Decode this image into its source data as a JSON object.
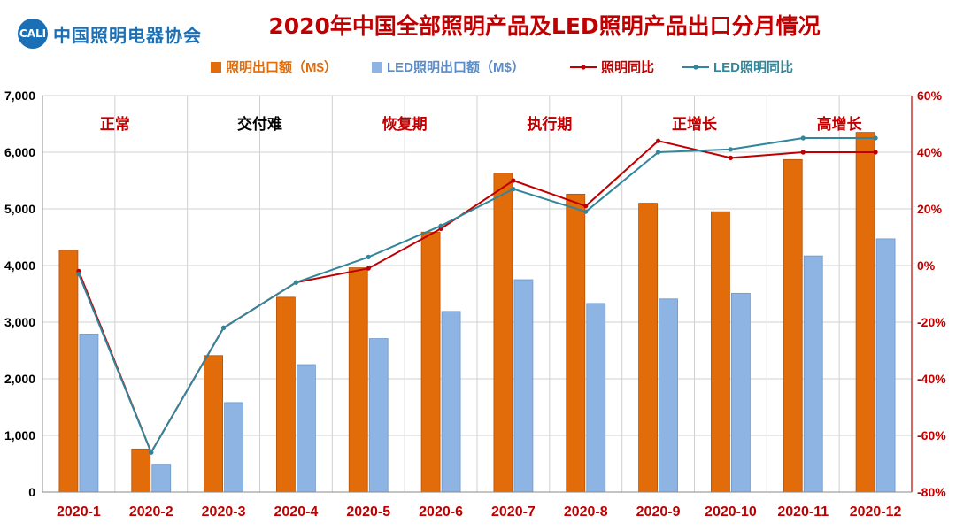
{
  "header": {
    "org_badge": "CALI",
    "org_name": "中国照明电器协会",
    "title": "2020年中国全部照明产品及LED照明产品出口分月情况"
  },
  "chart_data": {
    "type": "bar+line",
    "title": "2020年中国全部照明产品及LED照明产品出口分月情况",
    "categories": [
      "2020-1",
      "2020-2",
      "2020-3",
      "2020-4",
      "2020-5",
      "2020-6",
      "2020-7",
      "2020-8",
      "2020-9",
      "2020-10",
      "2020-11",
      "2020-12"
    ],
    "left_axis": {
      "range": [
        0,
        7000
      ],
      "ticks": [
        "0",
        "1,000",
        "2,000",
        "3,000",
        "4,000",
        "5,000",
        "6,000",
        "7,000"
      ]
    },
    "right_axis": {
      "range": [
        -80,
        60
      ],
      "ticks": [
        "-80%",
        "-60%",
        "-40%",
        "-20%",
        "0%",
        "20%",
        "40%",
        "60%"
      ]
    },
    "series": [
      {
        "name": "照明出口额（M$）",
        "type": "bar",
        "axis": "left",
        "color": "#e26b0a",
        "values": [
          4270,
          760,
          2410,
          3440,
          3960,
          4590,
          5630,
          5260,
          5100,
          4950,
          5870,
          6350
        ]
      },
      {
        "name": "LED照明出口额（M$）",
        "type": "bar",
        "axis": "left",
        "color": "#8db4e2",
        "values": [
          2790,
          490,
          1580,
          2250,
          2710,
          3190,
          3750,
          3330,
          3410,
          3510,
          4170,
          4470
        ]
      },
      {
        "name": "照明同比",
        "type": "line",
        "axis": "right",
        "color": "#c00000",
        "values": [
          -2,
          -66,
          -22,
          -6,
          -1,
          13,
          30,
          21,
          44,
          38,
          40,
          40
        ]
      },
      {
        "name": "LED照明同比",
        "type": "line",
        "axis": "right",
        "color": "#31869b",
        "values": [
          -3,
          -66,
          -22,
          -6,
          3,
          14,
          27,
          19,
          40,
          41,
          45,
          45
        ]
      }
    ],
    "phases": [
      {
        "label": "正常",
        "color": "#c00000"
      },
      {
        "label": "交付难",
        "color": "#000000"
      },
      {
        "label": "恢复期",
        "color": "#c00000"
      },
      {
        "label": "执行期",
        "color": "#c00000"
      },
      {
        "label": "正增长",
        "color": "#c00000"
      },
      {
        "label": "高增长",
        "color": "#c00000"
      }
    ],
    "grid": true,
    "legend_position": "top"
  }
}
